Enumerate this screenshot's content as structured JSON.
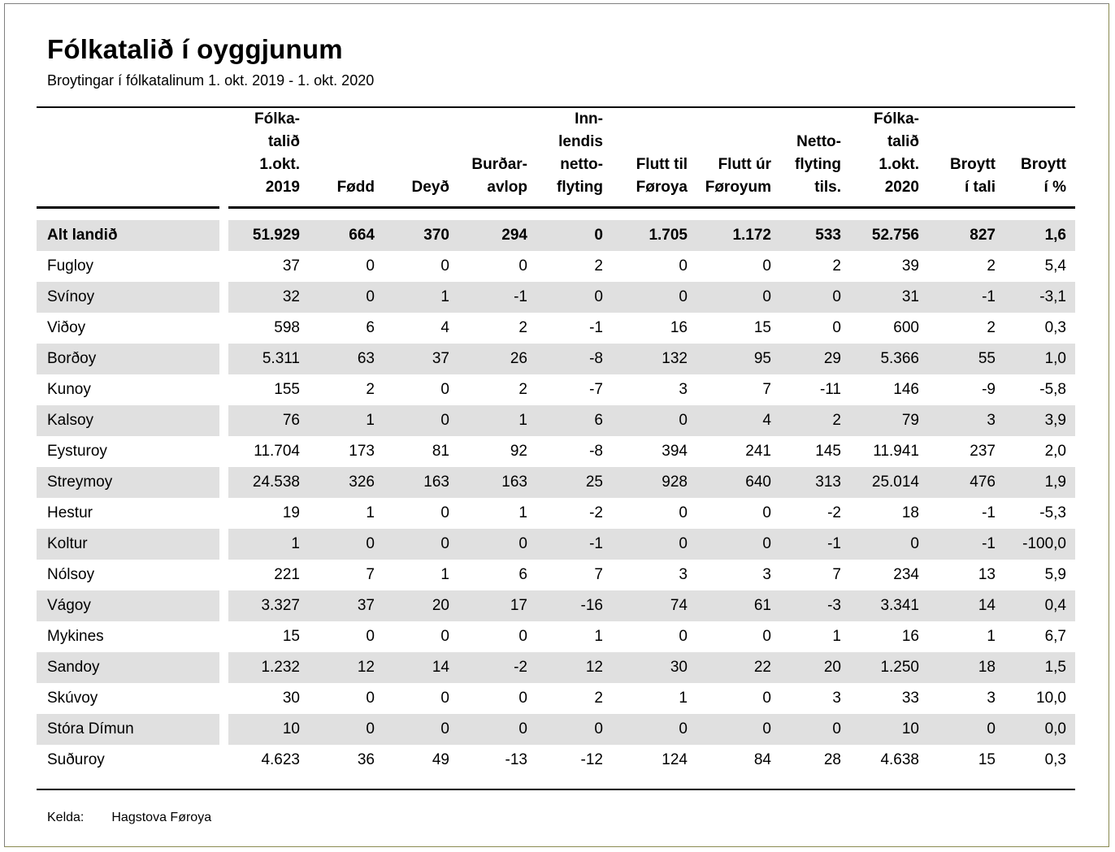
{
  "title": "Fólkatalið í oyggjunum",
  "subtitle": "Broytingar í fólkatalinum 1. okt. 2019 - 1. okt. 2020",
  "table": {
    "columns": [
      {
        "id": "folkatal-1okt-2019",
        "label": "Fólka-\ntalið\n1.okt.\n2019"
      },
      {
        "id": "fodd",
        "label": "Fødd"
      },
      {
        "id": "deyd",
        "label": "Deyð"
      },
      {
        "id": "burdaravlop",
        "label": "Burðar-\navlop"
      },
      {
        "id": "innlendis-nettoflyting",
        "label": "Inn-\nlendis\nnetto-\nflyting"
      },
      {
        "id": "flutt-til-foroya",
        "label": "Flutt til\nFøroya"
      },
      {
        "id": "flutt-ur-foroyum",
        "label": "Flutt úr\nFøroyum"
      },
      {
        "id": "nettoflyting-tils",
        "label": "Netto-\nflyting\ntils."
      },
      {
        "id": "folkatal-1okt-2020",
        "label": "Fólka-\ntalið\n1.okt.\n2020"
      },
      {
        "id": "broytt-i-tali",
        "label": "Broytt\ní tali"
      },
      {
        "id": "broytt-i-prosent",
        "label": "Broytt\ní %"
      }
    ],
    "rows": [
      {
        "label": "Alt landið",
        "bold": true,
        "values": [
          "51.929",
          "664",
          "370",
          "294",
          "0",
          "1.705",
          "1.172",
          "533",
          "52.756",
          "827",
          "1,6"
        ]
      },
      {
        "label": "Fugloy",
        "values": [
          "37",
          "0",
          "0",
          "0",
          "2",
          "0",
          "0",
          "2",
          "39",
          "2",
          "5,4"
        ]
      },
      {
        "label": "Svínoy",
        "values": [
          "32",
          "0",
          "1",
          "-1",
          "0",
          "0",
          "0",
          "0",
          "31",
          "-1",
          "-3,1"
        ]
      },
      {
        "label": "Viðoy",
        "values": [
          "598",
          "6",
          "4",
          "2",
          "-1",
          "16",
          "15",
          "0",
          "600",
          "2",
          "0,3"
        ]
      },
      {
        "label": "Borðoy",
        "values": [
          "5.311",
          "63",
          "37",
          "26",
          "-8",
          "132",
          "95",
          "29",
          "5.366",
          "55",
          "1,0"
        ]
      },
      {
        "label": "Kunoy",
        "values": [
          "155",
          "2",
          "0",
          "2",
          "-7",
          "3",
          "7",
          "-11",
          "146",
          "-9",
          "-5,8"
        ]
      },
      {
        "label": "Kalsoy",
        "values": [
          "76",
          "1",
          "0",
          "1",
          "6",
          "0",
          "4",
          "2",
          "79",
          "3",
          "3,9"
        ]
      },
      {
        "label": "Eysturoy",
        "values": [
          "11.704",
          "173",
          "81",
          "92",
          "-8",
          "394",
          "241",
          "145",
          "11.941",
          "237",
          "2,0"
        ]
      },
      {
        "label": "Streymoy",
        "values": [
          "24.538",
          "326",
          "163",
          "163",
          "25",
          "928",
          "640",
          "313",
          "25.014",
          "476",
          "1,9"
        ]
      },
      {
        "label": "Hestur",
        "values": [
          "19",
          "1",
          "0",
          "1",
          "-2",
          "0",
          "0",
          "-2",
          "18",
          "-1",
          "-5,3"
        ]
      },
      {
        "label": "Koltur",
        "values": [
          "1",
          "0",
          "0",
          "0",
          "-1",
          "0",
          "0",
          "-1",
          "0",
          "-1",
          "-100,0"
        ]
      },
      {
        "label": "Nólsoy",
        "values": [
          "221",
          "7",
          "1",
          "6",
          "7",
          "3",
          "3",
          "7",
          "234",
          "13",
          "5,9"
        ]
      },
      {
        "label": "Vágoy",
        "values": [
          "3.327",
          "37",
          "20",
          "17",
          "-16",
          "74",
          "61",
          "-3",
          "3.341",
          "14",
          "0,4"
        ]
      },
      {
        "label": "Mykines",
        "values": [
          "15",
          "0",
          "0",
          "0",
          "1",
          "0",
          "0",
          "1",
          "16",
          "1",
          "6,7"
        ]
      },
      {
        "label": "Sandoy",
        "values": [
          "1.232",
          "12",
          "14",
          "-2",
          "12",
          "30",
          "22",
          "20",
          "1.250",
          "18",
          "1,5"
        ]
      },
      {
        "label": "Skúvoy",
        "values": [
          "30",
          "0",
          "0",
          "0",
          "2",
          "1",
          "0",
          "3",
          "33",
          "3",
          "10,0"
        ]
      },
      {
        "label": "Stóra Dímun",
        "values": [
          "10",
          "0",
          "0",
          "0",
          "0",
          "0",
          "0",
          "0",
          "10",
          "0",
          "0,0"
        ]
      },
      {
        "label": "Suðuroy",
        "values": [
          "4.623",
          "36",
          "49",
          "-13",
          "-12",
          "124",
          "84",
          "28",
          "4.638",
          "15",
          "0,3"
        ]
      }
    ]
  },
  "footer": {
    "kelda_label": "Kelda:",
    "source": "Hagstova Føroya"
  },
  "colors": {
    "stripe": "#e0e0e0",
    "rule": "#000000",
    "frame_top_left": "#808080",
    "frame_bottom_right": "#8a8a50"
  }
}
